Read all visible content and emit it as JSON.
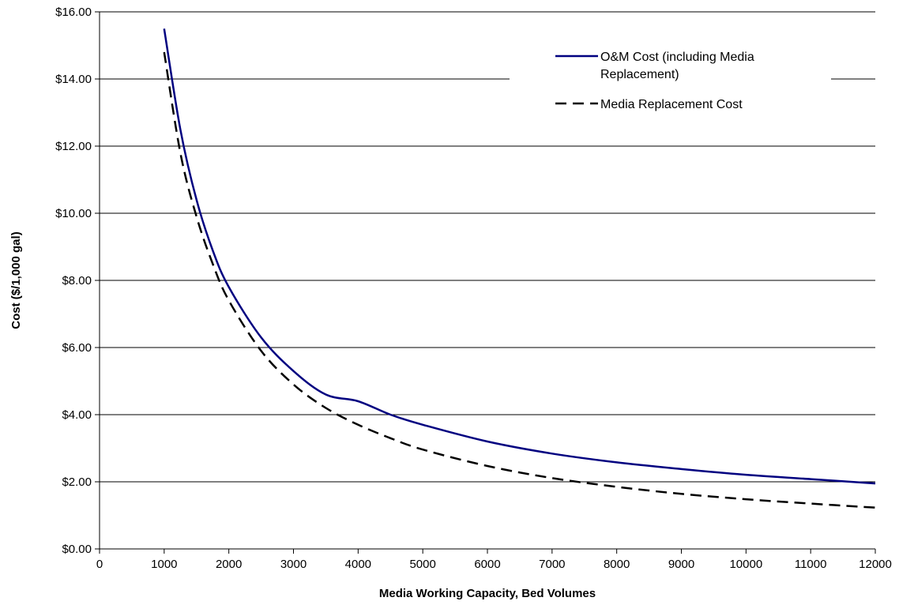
{
  "chart_data": {
    "type": "line",
    "title": "",
    "xlabel": "Media Working Capacity, Bed Volumes",
    "ylabel": "Cost ($/1,000 gal)",
    "xlim": [
      0,
      12000
    ],
    "ylim": [
      0,
      16
    ],
    "x_ticks": [
      0,
      1000,
      2000,
      3000,
      4000,
      5000,
      6000,
      7000,
      8000,
      9000,
      10000,
      11000,
      12000
    ],
    "y_ticks": [
      0,
      2,
      4,
      6,
      8,
      10,
      12,
      14,
      16
    ],
    "y_tick_labels": [
      "$0.00",
      "$2.00",
      "$4.00",
      "$6.00",
      "$8.00",
      "$10.00",
      "$12.00",
      "$14.00",
      "$16.00"
    ],
    "grid": "horizontal",
    "legend_position": "top-right",
    "series": [
      {
        "name": "O&M Cost (including Media Replacement)",
        "color": "#000080",
        "style": "solid",
        "x": [
          1000,
          1250,
          1500,
          1750,
          2000,
          2500,
          3000,
          3500,
          4000,
          4500,
          5000,
          6000,
          7000,
          8000,
          9000,
          10000,
          11000,
          12000
        ],
        "y": [
          15.5,
          12.5,
          10.4,
          8.9,
          7.8,
          6.3,
          5.3,
          4.6,
          4.4,
          4.0,
          3.7,
          3.2,
          2.84,
          2.58,
          2.38,
          2.21,
          2.08,
          1.95
        ]
      },
      {
        "name": "Media Replacement Cost",
        "color": "#000000",
        "style": "dashed",
        "x": [
          1000,
          1250,
          1500,
          1750,
          2000,
          2500,
          3000,
          3500,
          4000,
          4500,
          5000,
          6000,
          7000,
          8000,
          9000,
          10000,
          11000,
          12000
        ],
        "y": [
          14.8,
          11.8,
          9.9,
          8.5,
          7.4,
          5.9,
          4.9,
          4.2,
          3.7,
          3.3,
          2.96,
          2.47,
          2.11,
          1.85,
          1.64,
          1.48,
          1.35,
          1.23
        ]
      }
    ]
  }
}
